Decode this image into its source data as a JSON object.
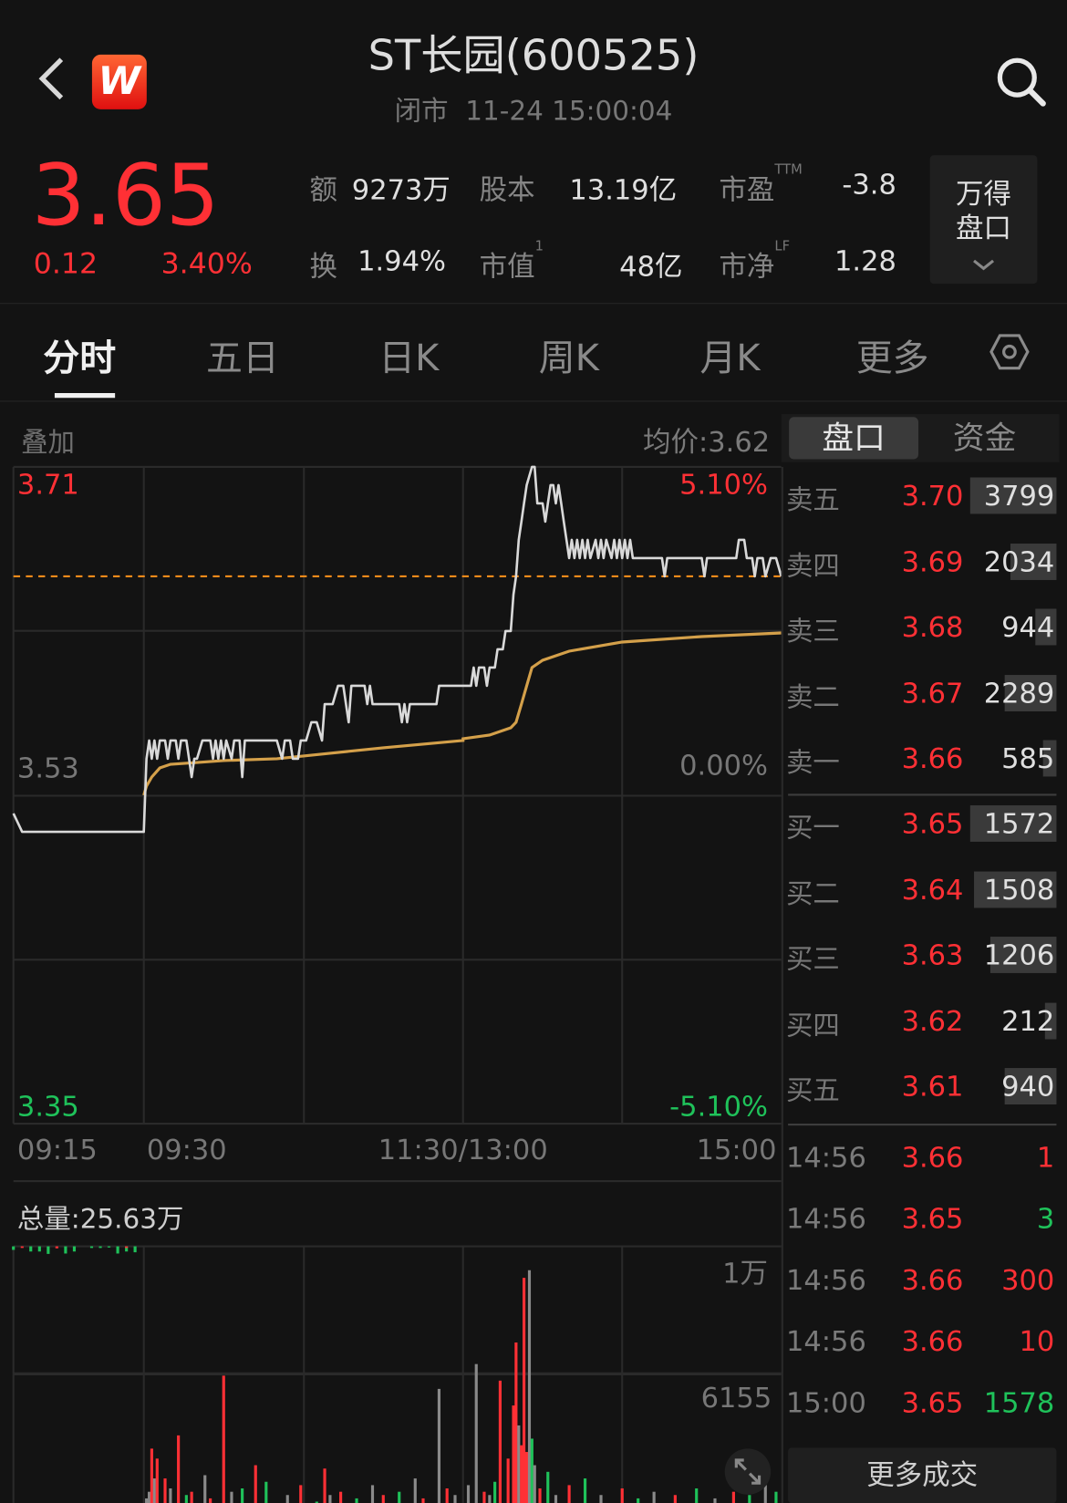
{
  "header": {
    "title": "ST长园(600525)",
    "status": "闭市",
    "datetime": "11-24 15:00:04",
    "brand_letter": "W",
    "brand_colors": [
      "#ff6633",
      "#e01010"
    ]
  },
  "quote": {
    "price": "3.65",
    "change": "0.12",
    "change_pct": "3.40%",
    "stats": [
      {
        "label": "额",
        "sup": "",
        "value": "9273万"
      },
      {
        "label": "股本",
        "sup": "",
        "value": "13.19亿"
      },
      {
        "label": "市盈",
        "sup": "TTM",
        "value": "-3.8"
      },
      {
        "label": "换",
        "sup": "",
        "value": "1.94%"
      },
      {
        "label": "市值",
        "sup": "1",
        "value": "48亿"
      },
      {
        "label": "市净",
        "sup": "LF",
        "value": "1.28"
      }
    ],
    "wind_button": {
      "line1": "万得",
      "line2": "盘口"
    }
  },
  "tabs": [
    {
      "label": "分时",
      "active": true
    },
    {
      "label": "五日"
    },
    {
      "label": "日K"
    },
    {
      "label": "周K"
    },
    {
      "label": "月K"
    },
    {
      "label": "更多"
    }
  ],
  "chart_header": {
    "overlay": "叠加",
    "avg_price": "均价:3.62"
  },
  "panel_tabs": [
    "盘口",
    "资金"
  ],
  "order_book": {
    "asks": [
      {
        "name": "卖五",
        "price": "3.70",
        "volume": "3799",
        "vol": 3799
      },
      {
        "name": "卖四",
        "price": "3.69",
        "volume": "2034",
        "vol": 2034
      },
      {
        "name": "卖三",
        "price": "3.68",
        "volume": "944",
        "vol": 944
      },
      {
        "name": "卖二",
        "price": "3.67",
        "volume": "2289",
        "vol": 2289
      },
      {
        "name": "卖一",
        "price": "3.66",
        "volume": "585",
        "vol": 585
      }
    ],
    "bids": [
      {
        "name": "买一",
        "price": "3.65",
        "volume": "1572",
        "vol": 1572
      },
      {
        "name": "买二",
        "price": "3.64",
        "volume": "1508",
        "vol": 1508
      },
      {
        "name": "买三",
        "price": "3.63",
        "volume": "1206",
        "vol": 1206
      },
      {
        "name": "买四",
        "price": "3.62",
        "volume": "212",
        "vol": 212
      },
      {
        "name": "买五",
        "price": "3.61",
        "volume": "940",
        "vol": 940
      }
    ]
  },
  "ticks": [
    {
      "time": "14:56",
      "price": "3.66",
      "volume": "1",
      "dir": "up"
    },
    {
      "time": "14:56",
      "price": "3.65",
      "volume": "3",
      "dir": "down"
    },
    {
      "time": "14:56",
      "price": "3.66",
      "volume": "300",
      "dir": "up"
    },
    {
      "time": "14:56",
      "price": "3.66",
      "volume": "10",
      "dir": "up"
    },
    {
      "time": "15:00",
      "price": "3.65",
      "volume": "1578",
      "dir": "down"
    }
  ],
  "more_trades": "更多成交",
  "colors": {
    "up": "#ff3035",
    "down": "#1fc25a",
    "flat": "#8a8a8a",
    "price_line": "#d9d9d9",
    "avg_line": "#d4a04a",
    "last_price_line": "#ff8c1a"
  },
  "chart_data": [
    {
      "type": "line",
      "y_labels_left": [
        "3.71",
        "3.53",
        "3.35"
      ],
      "y_labels_right": [
        "5.10%",
        "0.00%",
        "-5.10%"
      ],
      "x_labels": [
        "09:15",
        "09:30",
        "11:30/13:00",
        "15:00"
      ],
      "ylim": [
        3.35,
        3.71
      ],
      "prev_close": 3.53,
      "last_price": 3.65,
      "grid": true,
      "price": [
        [
          "09:15",
          3.52
        ],
        [
          "09:16",
          3.51
        ],
        [
          "09:29",
          3.51
        ],
        [
          "09:30",
          3.51
        ],
        [
          "09:31",
          3.55
        ],
        [
          "09:32",
          3.56
        ],
        [
          "09:33",
          3.55
        ],
        [
          "09:34",
          3.56
        ],
        [
          "09:35",
          3.55
        ],
        [
          "09:36",
          3.56
        ],
        [
          "09:38",
          3.56
        ],
        [
          "09:39",
          3.55
        ],
        [
          "09:40",
          3.56
        ],
        [
          "09:42",
          3.56
        ],
        [
          "09:43",
          3.55
        ],
        [
          "09:44",
          3.56
        ],
        [
          "09:46",
          3.56
        ],
        [
          "09:47",
          3.55
        ],
        [
          "09:48",
          3.54
        ],
        [
          "09:49",
          3.55
        ],
        [
          "09:50",
          3.55
        ],
        [
          "09:52",
          3.56
        ],
        [
          "09:55",
          3.56
        ],
        [
          "09:56",
          3.55
        ],
        [
          "09:57",
          3.56
        ],
        [
          "09:58",
          3.55
        ],
        [
          "09:59",
          3.56
        ],
        [
          "10:00",
          3.55
        ],
        [
          "10:01",
          3.56
        ],
        [
          "10:03",
          3.55
        ],
        [
          "10:04",
          3.56
        ],
        [
          "10:06",
          3.56
        ],
        [
          "10:07",
          3.54
        ],
        [
          "10:08",
          3.56
        ],
        [
          "10:20",
          3.56
        ],
        [
          "10:22",
          3.55
        ],
        [
          "10:23",
          3.56
        ],
        [
          "10:25",
          3.56
        ],
        [
          "10:26",
          3.55
        ],
        [
          "10:28",
          3.55
        ],
        [
          "10:29",
          3.56
        ],
        [
          "10:31",
          3.56
        ],
        [
          "10:33",
          3.57
        ],
        [
          "10:35",
          3.57
        ],
        [
          "10:37",
          3.56
        ],
        [
          "10:38",
          3.58
        ],
        [
          "10:41",
          3.58
        ],
        [
          "10:43",
          3.59
        ],
        [
          "10:45",
          3.59
        ],
        [
          "10:46",
          3.58
        ],
        [
          "10:47",
          3.57
        ],
        [
          "10:48",
          3.59
        ],
        [
          "10:53",
          3.59
        ],
        [
          "10:54",
          3.58
        ],
        [
          "10:55",
          3.59
        ],
        [
          "10:56",
          3.58
        ],
        [
          "11:06",
          3.58
        ],
        [
          "11:07",
          3.57
        ],
        [
          "11:08",
          3.58
        ],
        [
          "11:09",
          3.57
        ],
        [
          "11:10",
          3.58
        ],
        [
          "11:20",
          3.58
        ],
        [
          "11:21",
          3.59
        ],
        [
          "11:30",
          3.59
        ],
        [
          "13:00",
          3.59
        ],
        [
          "13:03",
          3.59
        ],
        [
          "13:04",
          3.6
        ],
        [
          "13:05",
          3.59
        ],
        [
          "13:06",
          3.6
        ],
        [
          "13:08",
          3.6
        ],
        [
          "13:09",
          3.59
        ],
        [
          "13:10",
          3.6
        ],
        [
          "13:12",
          3.6
        ],
        [
          "13:13",
          3.61
        ],
        [
          "13:15",
          3.61
        ],
        [
          "13:16",
          3.62
        ],
        [
          "13:18",
          3.62
        ],
        [
          "13:19",
          3.64
        ],
        [
          "13:20",
          3.65
        ],
        [
          "13:21",
          3.67
        ],
        [
          "13:22",
          3.68
        ],
        [
          "13:23",
          3.69
        ],
        [
          "13:24",
          3.7
        ],
        [
          "13:26",
          3.71
        ],
        [
          "13:27",
          3.71
        ],
        [
          "13:28",
          3.69
        ],
        [
          "13:30",
          3.69
        ],
        [
          "13:31",
          3.68
        ],
        [
          "13:32",
          3.69
        ],
        [
          "13:33",
          3.7
        ],
        [
          "13:34",
          3.7
        ],
        [
          "13:35",
          3.69
        ],
        [
          "13:36",
          3.7
        ],
        [
          "13:37",
          3.69
        ],
        [
          "13:38",
          3.68
        ],
        [
          "13:39",
          3.67
        ],
        [
          "13:40",
          3.66
        ],
        [
          "13:41",
          3.67
        ],
        [
          "13:42",
          3.66
        ],
        [
          "13:43",
          3.67
        ],
        [
          "13:44",
          3.66
        ],
        [
          "13:45",
          3.67
        ],
        [
          "13:46",
          3.66
        ],
        [
          "13:47",
          3.67
        ],
        [
          "13:48",
          3.66
        ],
        [
          "13:50",
          3.67
        ],
        [
          "13:51",
          3.66
        ],
        [
          "13:52",
          3.67
        ],
        [
          "13:53",
          3.66
        ],
        [
          "13:54",
          3.67
        ],
        [
          "13:56",
          3.66
        ],
        [
          "13:57",
          3.67
        ],
        [
          "13:58",
          3.66
        ],
        [
          "13:59",
          3.67
        ],
        [
          "14:00",
          3.66
        ],
        [
          "14:01",
          3.67
        ],
        [
          "14:02",
          3.66
        ],
        [
          "14:03",
          3.67
        ],
        [
          "14:04",
          3.66
        ],
        [
          "14:15",
          3.66
        ],
        [
          "14:16",
          3.65
        ],
        [
          "14:17",
          3.66
        ],
        [
          "14:30",
          3.66
        ],
        [
          "14:31",
          3.65
        ],
        [
          "14:32",
          3.66
        ],
        [
          "14:43",
          3.66
        ],
        [
          "14:44",
          3.67
        ],
        [
          "14:46",
          3.67
        ],
        [
          "14:47",
          3.66
        ],
        [
          "14:49",
          3.66
        ],
        [
          "14:50",
          3.65
        ],
        [
          "14:51",
          3.66
        ],
        [
          "14:53",
          3.66
        ],
        [
          "14:54",
          3.65
        ],
        [
          "14:56",
          3.66
        ],
        [
          "14:58",
          3.66
        ],
        [
          "15:00",
          3.65
        ]
      ],
      "average": [
        [
          "09:30",
          3.53
        ],
        [
          "09:31",
          3.535
        ],
        [
          "09:33",
          3.54
        ],
        [
          "09:36",
          3.545
        ],
        [
          "09:40",
          3.547
        ],
        [
          "09:50",
          3.548
        ],
        [
          "10:00",
          3.549
        ],
        [
          "10:20",
          3.55
        ],
        [
          "10:40",
          3.553
        ],
        [
          "11:00",
          3.556
        ],
        [
          "11:15",
          3.558
        ],
        [
          "11:30",
          3.56
        ],
        [
          "13:00",
          3.561
        ],
        [
          "13:10",
          3.563
        ],
        [
          "13:18",
          3.567
        ],
        [
          "13:20",
          3.57
        ],
        [
          "13:22",
          3.58
        ],
        [
          "13:24",
          3.59
        ],
        [
          "13:26",
          3.6
        ],
        [
          "13:30",
          3.604
        ],
        [
          "13:40",
          3.609
        ],
        [
          "14:00",
          3.614
        ],
        [
          "14:30",
          3.617
        ],
        [
          "15:00",
          3.619
        ]
      ]
    },
    {
      "type": "bar",
      "title": "总量:25.63万",
      "y_labels": [
        "1万",
        "6155"
      ],
      "ylim": [
        0,
        10000
      ],
      "auction": [
        [
          "09:15",
          900,
          "down"
        ],
        [
          "09:16",
          400,
          "up"
        ],
        [
          "09:17",
          1300,
          "down"
        ],
        [
          "09:18",
          1300,
          "down"
        ],
        [
          "09:19",
          1900,
          "down"
        ],
        [
          "09:20",
          500,
          "up"
        ],
        [
          "09:21",
          1800,
          "down"
        ],
        [
          "09:22",
          1300,
          "down"
        ],
        [
          "09:24",
          400,
          "down"
        ],
        [
          "09:25",
          400,
          "down"
        ],
        [
          "09:26",
          300,
          "down"
        ],
        [
          "09:27",
          1800,
          "down"
        ],
        [
          "09:28",
          1300,
          "down"
        ],
        [
          "09:28",
          400,
          "up"
        ],
        [
          "09:29",
          1500,
          "down"
        ]
      ],
      "bars": [
        [
          "09:31",
          2400,
          "flat"
        ],
        [
          "09:32",
          2600,
          "flat"
        ],
        [
          "09:33",
          3900,
          "up"
        ],
        [
          "09:34",
          3000,
          "flat"
        ],
        [
          "09:35",
          3600,
          "up"
        ],
        [
          "09:37",
          2200,
          "down"
        ],
        [
          "09:38",
          3000,
          "up"
        ],
        [
          "09:40",
          2700,
          "flat"
        ],
        [
          "09:43",
          4300,
          "up"
        ],
        [
          "09:46",
          2500,
          "down"
        ],
        [
          "09:48",
          2600,
          "up"
        ],
        [
          "09:53",
          3100,
          "flat"
        ],
        [
          "09:55",
          2400,
          "up"
        ],
        [
          "10:00",
          6100,
          "up"
        ],
        [
          "10:03",
          2600,
          "flat"
        ],
        [
          "10:07",
          2700,
          "down"
        ],
        [
          "10:12",
          3400,
          "up"
        ],
        [
          "10:16",
          2900,
          "down"
        ],
        [
          "10:24",
          2500,
          "flat"
        ],
        [
          "10:29",
          2800,
          "up"
        ],
        [
          "10:35",
          2300,
          "down"
        ],
        [
          "10:38",
          3300,
          "up"
        ],
        [
          "10:40",
          2500,
          "flat"
        ],
        [
          "10:44",
          2600,
          "up"
        ],
        [
          "10:50",
          2400,
          "down"
        ],
        [
          "10:56",
          2800,
          "flat"
        ],
        [
          "11:00",
          2500,
          "up"
        ],
        [
          "11:06",
          2600,
          "down"
        ],
        [
          "11:12",
          3000,
          "flat"
        ],
        [
          "11:15",
          2400,
          "up"
        ],
        [
          "11:21",
          5700,
          "flat"
        ],
        [
          "11:24",
          2700,
          "up"
        ],
        [
          "11:27",
          2500,
          "flat"
        ],
        [
          "13:02",
          2800,
          "flat"
        ],
        [
          "13:05",
          6450,
          "flat"
        ],
        [
          "13:08",
          2600,
          "up"
        ],
        [
          "13:10",
          2500,
          "flat"
        ],
        [
          "13:12",
          2900,
          "down"
        ],
        [
          "13:14",
          5950,
          "up"
        ],
        [
          "13:17",
          3600,
          "up"
        ],
        [
          "13:19",
          5200,
          "up"
        ],
        [
          "13:20",
          7100,
          "up"
        ],
        [
          "13:21",
          4600,
          "flat"
        ],
        [
          "13:22",
          4000,
          "up"
        ],
        [
          "13:23",
          9050,
          "up"
        ],
        [
          "13:24",
          3800,
          "up"
        ],
        [
          "13:25",
          9280,
          "flat"
        ],
        [
          "13:26",
          4200,
          "down"
        ],
        [
          "13:27",
          3400,
          "flat"
        ],
        [
          "13:29",
          2700,
          "up"
        ],
        [
          "13:32",
          3200,
          "down"
        ],
        [
          "13:35",
          2500,
          "flat"
        ],
        [
          "13:40",
          2800,
          "up"
        ],
        [
          "13:46",
          3000,
          "down"
        ],
        [
          "13:52",
          2500,
          "flat"
        ],
        [
          "14:00",
          2700,
          "up"
        ],
        [
          "14:06",
          2400,
          "down"
        ],
        [
          "14:12",
          2600,
          "flat"
        ],
        [
          "14:20",
          2500,
          "up"
        ],
        [
          "14:28",
          2700,
          "down"
        ],
        [
          "14:35",
          2400,
          "flat"
        ],
        [
          "14:42",
          2600,
          "up"
        ],
        [
          "14:48",
          2500,
          "down"
        ],
        [
          "14:54",
          2800,
          "flat"
        ],
        [
          "14:58",
          2600,
          "down"
        ]
      ]
    }
  ]
}
